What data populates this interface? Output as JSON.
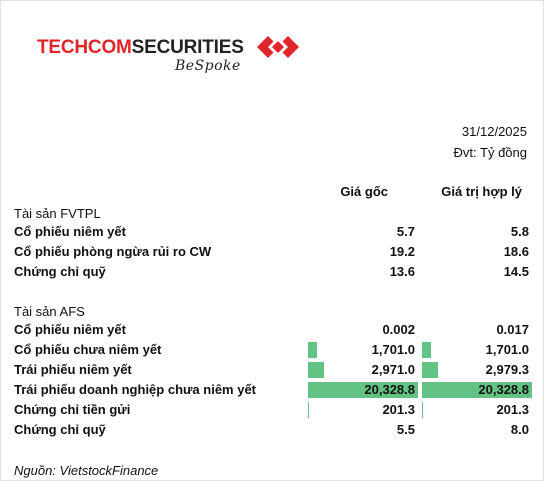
{
  "logo": {
    "part1": "TECHCOM",
    "part2": "SECURITIES",
    "tagline": "BeSpoke"
  },
  "date": "31/12/2025",
  "unit": "Đvt: Tỷ đồng",
  "headers": {
    "cost": "Giá gốc",
    "fair": "Giá trị hợp lý"
  },
  "fvtpl": {
    "title": "Tài sản FVTPL",
    "rows": [
      {
        "label": "Cổ phiếu niêm yết",
        "cost": "5.7",
        "fair": "5.8",
        "cost_fill": 0,
        "fair_fill": 0
      },
      {
        "label": "Cổ phiếu phòng ngừa rủi ro CW",
        "cost": "19.2",
        "fair": "18.6",
        "cost_fill": 0,
        "fair_fill": 0
      },
      {
        "label": "Chứng chỉ quỹ",
        "cost": "13.6",
        "fair": "14.5",
        "cost_fill": 0,
        "fair_fill": 0
      }
    ]
  },
  "afs": {
    "title": "Tài sản AFS",
    "rows": [
      {
        "label": "Cổ phiếu niêm yết",
        "cost": "0.002",
        "fair": "0.017",
        "cost_fill": 0,
        "fair_fill": 0
      },
      {
        "label": "Cổ phiếu chưa niêm yết",
        "cost": "1,701.0",
        "fair": "1,701.0",
        "cost_fill": 0.084,
        "fair_fill": 0.084
      },
      {
        "label": "Trái phiếu niêm yết",
        "cost": "2,971.0",
        "fair": "2,979.3",
        "cost_fill": 0.146,
        "fair_fill": 0.147
      },
      {
        "label": "Trái phiếu doanh nghiệp chưa niêm yết",
        "cost": "20,328.8",
        "fair": "20,328.8",
        "cost_fill": 1.0,
        "fair_fill": 1.0
      },
      {
        "label": "Chứng chỉ tiền gửi",
        "cost": "201.3",
        "fair": "201.3",
        "cost_fill": 0.01,
        "fair_fill": 0.01
      },
      {
        "label": "Chứng chỉ quỹ",
        "cost": "5.5",
        "fair": "8.0",
        "cost_fill": 0,
        "fair_fill": 0
      }
    ]
  },
  "source": "Nguồn: VietstockFinance",
  "colors": {
    "bar": "#63c384",
    "brand_red": "#e0262a"
  }
}
